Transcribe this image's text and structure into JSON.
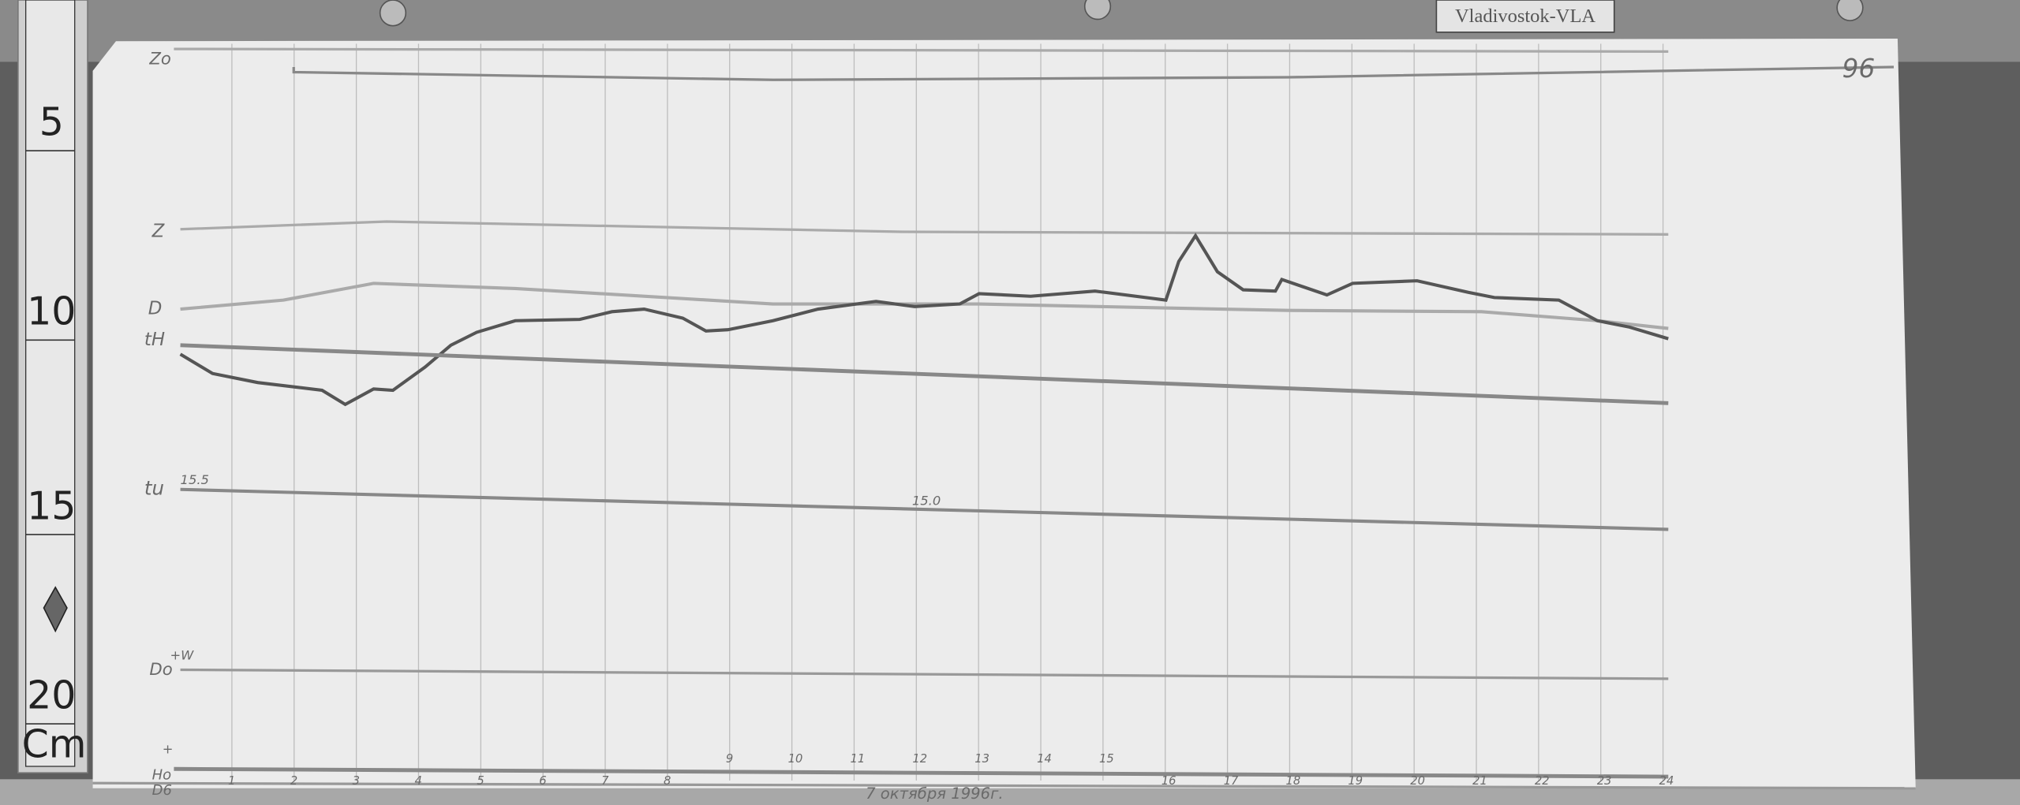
{
  "station_label": "Vladivostok-VLA",
  "sheet_number": "96",
  "ruler": {
    "marks": [
      "5",
      "10",
      "15",
      "20"
    ],
    "unit": "Cm"
  },
  "channels": {
    "zo": "Zo",
    "z": "Z",
    "d": "D",
    "th": "tH",
    "tu": "tu",
    "tu_start": "15.5",
    "tu_mid": "15.0",
    "do": "Do",
    "do_dir": "+W",
    "ho": "Ho",
    "ho_sub": "D6",
    "ho_dir": "+"
  },
  "hours": [
    "1",
    "2",
    "3",
    "4",
    "5",
    "6",
    "7",
    "8",
    "9",
    "10",
    "11",
    "12",
    "13",
    "14",
    "15",
    "16",
    "17",
    "18",
    "19",
    "20",
    "21",
    "22",
    "23",
    "24"
  ],
  "date_note": "7 октября 1996г."
}
